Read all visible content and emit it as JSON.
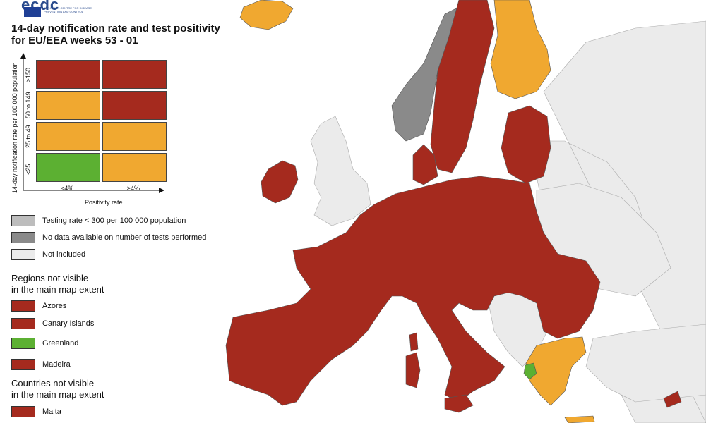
{
  "header": {
    "logo_text": "ecdc",
    "logo_subtext": "EUROPEAN CENTRE FOR DISEASE PREVENTION AND CONTROL",
    "title_line1": "14-day notification rate and test positivity",
    "title_line2": "for EU/EEA weeks 53 - 01"
  },
  "matrix": {
    "y_axis_label": "14-day notification rate per 100 000 population",
    "x_axis_label": "Positivity rate",
    "rows": [
      {
        "label": "≥150",
        "cells": [
          "dark-red",
          "dark-red"
        ]
      },
      {
        "label": "50 to 149",
        "cells": [
          "orange",
          "dark-red"
        ]
      },
      {
        "label": "25 to 49",
        "cells": [
          "orange",
          "orange"
        ]
      },
      {
        "label": "<25",
        "cells": [
          "green",
          "orange"
        ]
      }
    ],
    "columns": [
      "<4%",
      "≥4%"
    ]
  },
  "legend": {
    "items": [
      {
        "label": "Testing rate < 300 per 100 000 population",
        "color": "#bdbdbd"
      },
      {
        "label": "No data available on number of tests performed",
        "color": "#8a8a8a"
      },
      {
        "label": "Not included",
        "color": "#ebebeb"
      }
    ]
  },
  "regions_section": {
    "heading_line1": "Regions not visible",
    "heading_line2": "in the main map extent",
    "items": [
      {
        "label": "Azores",
        "color": "#a52a1e"
      },
      {
        "label": "Canary Islands",
        "color": "#a52a1e"
      },
      {
        "label": "Greenland",
        "color": "#5cb032"
      },
      {
        "label": "Madeira",
        "color": "#a52a1e"
      }
    ]
  },
  "countries_section": {
    "heading_line1": "Countries not visible",
    "heading_line2": "in the main map extent",
    "items": [
      {
        "label": "Malta",
        "color": "#a52a1e"
      }
    ]
  },
  "colors": {
    "dark-red": "#a52a1e",
    "orange": "#f0a830",
    "green": "#5cb032",
    "no-data": "#8a8a8a",
    "not-included": "#ebebeb",
    "sea": "#ffffff"
  }
}
